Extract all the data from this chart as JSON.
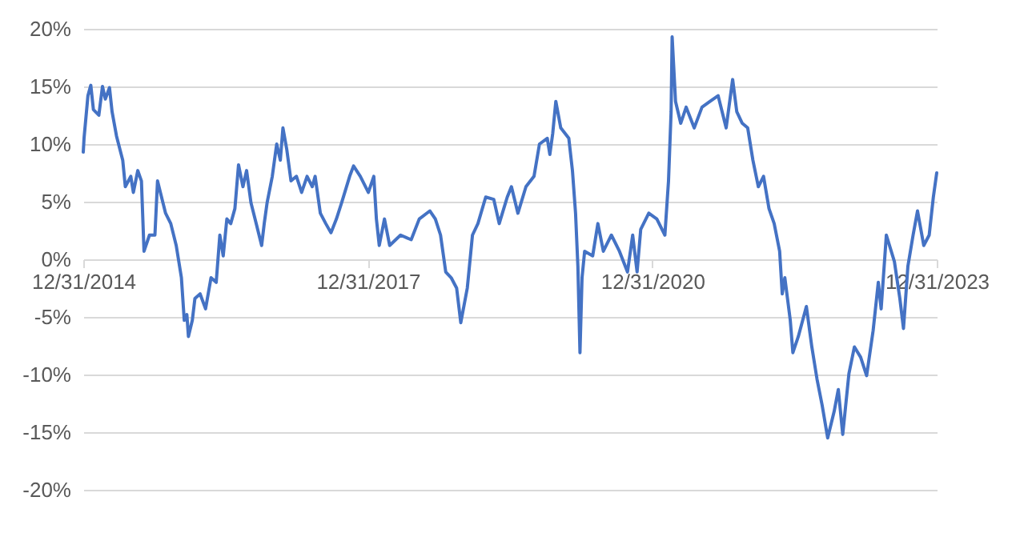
{
  "chart_data": {
    "type": "line",
    "x": [
      "2014-12-31",
      "2015-01-03",
      "2015-01-18",
      "2015-01-29",
      "2015-02-08",
      "2015-03-01",
      "2015-03-15",
      "2015-03-26",
      "2015-04-11",
      "2015-04-21",
      "2015-05-08",
      "2015-06-01",
      "2015-06-11",
      "2015-07-02",
      "2015-07-12",
      "2015-07-29",
      "2015-08-12",
      "2015-08-22",
      "2015-09-12",
      "2015-10-03",
      "2015-10-13",
      "2015-11-03",
      "2015-11-13",
      "2015-12-03",
      "2015-12-24",
      "2016-01-13",
      "2016-01-24",
      "2016-02-03",
      "2016-02-09",
      "2016-02-24",
      "2016-03-05",
      "2016-03-25",
      "2016-04-15",
      "2016-05-06",
      "2016-05-26",
      "2016-06-09",
      "2016-06-22",
      "2016-07-06",
      "2016-07-21",
      "2016-08-06",
      "2016-08-20",
      "2016-09-06",
      "2016-09-20",
      "2016-10-07",
      "2016-10-27",
      "2016-11-17",
      "2016-11-27",
      "2016-12-08",
      "2016-12-28",
      "2017-01-14",
      "2017-01-28",
      "2017-02-07",
      "2017-02-22",
      "2017-03-10",
      "2017-03-31",
      "2017-04-20",
      "2017-05-11",
      "2017-05-31",
      "2017-06-11",
      "2017-07-01",
      "2017-07-22",
      "2017-08-11",
      "2017-09-01",
      "2017-09-21",
      "2017-10-22",
      "2017-11-06",
      "2017-12-02",
      "2018-01-02",
      "2018-01-23",
      "2018-02-02",
      "2018-02-13",
      "2018-03-05",
      "2018-03-25",
      "2018-05-06",
      "2018-06-16",
      "2018-07-17",
      "2018-08-27",
      "2018-09-17",
      "2018-10-07",
      "2018-10-27",
      "2018-11-17",
      "2018-12-08",
      "2018-12-24",
      "2019-01-18",
      "2019-02-07",
      "2019-02-28",
      "2019-03-30",
      "2019-04-30",
      "2019-05-21",
      "2019-06-21",
      "2019-07-07",
      "2019-08-01",
      "2019-09-01",
      "2019-10-02",
      "2019-10-23",
      "2019-11-22",
      "2019-12-02",
      "2019-12-13",
      "2019-12-25",
      "2020-01-13",
      "2020-02-13",
      "2020-02-27",
      "2020-03-10",
      "2020-03-19",
      "2020-03-27",
      "2020-04-04",
      "2020-04-14",
      "2020-05-15",
      "2020-06-04",
      "2020-06-25",
      "2020-07-26",
      "2020-08-26",
      "2020-09-26",
      "2020-10-16",
      "2020-11-02",
      "2020-11-16",
      "2020-12-17",
      "2021-01-17",
      "2021-02-17",
      "2021-03-03",
      "2021-03-13",
      "2021-03-17",
      "2021-03-30",
      "2021-04-19",
      "2021-05-10",
      "2021-06-10",
      "2021-07-10",
      "2021-08-10",
      "2021-09-10",
      "2021-10-11",
      "2021-11-05",
      "2021-11-21",
      "2021-12-12",
      "2022-01-02",
      "2022-01-22",
      "2022-02-12",
      "2022-03-04",
      "2022-03-25",
      "2022-04-14",
      "2022-05-05",
      "2022-05-15",
      "2022-05-25",
      "2022-06-15",
      "2022-06-25",
      "2022-07-16",
      "2022-08-16",
      "2022-09-06",
      "2022-09-26",
      "2022-10-16",
      "2022-11-06",
      "2022-12-01",
      "2022-12-17",
      "2023-01-03",
      "2023-01-27",
      "2023-02-17",
      "2023-03-13",
      "2023-04-05",
      "2023-04-30",
      "2023-05-20",
      "2023-05-31",
      "2023-06-20",
      "2023-07-21",
      "2023-08-11",
      "2023-08-25",
      "2023-09-11",
      "2023-10-01",
      "2023-10-18",
      "2023-11-11",
      "2023-12-02",
      "2023-12-18",
      "2023-12-31"
    ],
    "series": [
      {
        "color": "#4472c4",
        "values": [
          9.3,
          10.5,
          14.2,
          15.1,
          13,
          12.5,
          15,
          13.9,
          14.9,
          12.8,
          10.7,
          8.6,
          6.3,
          7.2,
          5.8,
          7.7,
          6.8,
          0.7,
          2.1,
          2.1,
          6.8,
          4.9,
          4.0,
          3.1,
          1.2,
          -1.6,
          -5.3,
          -4.8,
          -6.7,
          -5.3,
          -3.4,
          -3.0,
          -4.3,
          -1.6,
          -2.0,
          2.1,
          0.3,
          3.5,
          3.1,
          4.4,
          8.2,
          6.3,
          7.7,
          4.9,
          3.1,
          1.2,
          3.1,
          4.9,
          7.2,
          10,
          8.6,
          11.4,
          9.5,
          6.8,
          7.2,
          5.8,
          7.2,
          6.3,
          7.2,
          4.0,
          3.1,
          2.3,
          3.5,
          4.9,
          7.2,
          8.1,
          7.2,
          5.8,
          7.2,
          3.5,
          1.2,
          3.5,
          1.2,
          2.1,
          1.7,
          3.5,
          4.2,
          3.5,
          2.1,
          -1.1,
          -1.6,
          -2.5,
          -5.5,
          -2.5,
          2.1,
          3.1,
          5.4,
          5.2,
          3.1,
          5.4,
          6.3,
          4.0,
          6.3,
          7.2,
          10,
          10.5,
          9.1,
          10.9,
          13.7,
          11.4,
          10.5,
          7.7,
          4.0,
          -0.6,
          -8.1,
          -1.6,
          0.7,
          0.3,
          3.1,
          0.7,
          2.1,
          0.7,
          -1.1,
          2.1,
          -1.1,
          2.6,
          4.0,
          3.5,
          2.1,
          6.8,
          12.8,
          19.3,
          13.7,
          11.8,
          13.2,
          11.4,
          13.2,
          13.7,
          14.2,
          11.4,
          15.6,
          12.8,
          11.8,
          11.4,
          8.6,
          6.3,
          7.2,
          4.4,
          3.1,
          0.7,
          -3.0,
          -1.6,
          -5.3,
          -8.1,
          -6.7,
          -4.1,
          -7.6,
          -10.4,
          -12.7,
          -15.5,
          -13.2,
          -11.3,
          -15.2,
          -9.9,
          -7.6,
          -8.5,
          -10.1,
          -6.2,
          -2.0,
          -4.3,
          2.1,
          -0.2,
          -3.4,
          -6.0,
          -0.6,
          2.1,
          4.2,
          1.2,
          2.1,
          5.4,
          7.5
        ]
      }
    ],
    "xlim": [
      "2014-12-31",
      "2023-12-31"
    ],
    "xticks": [
      {
        "value": "2014-12-31",
        "label": "12/31/2014"
      },
      {
        "value": "2017-12-31",
        "label": "12/31/2017"
      },
      {
        "value": "2020-12-31",
        "label": "12/31/2020"
      },
      {
        "value": "2023-12-31",
        "label": "12/31/2023"
      }
    ],
    "ylim": [
      -20,
      20
    ],
    "yticks": [
      {
        "value": -20,
        "label": "-20%"
      },
      {
        "value": -15,
        "label": "-15%"
      },
      {
        "value": -10,
        "label": "-10%"
      },
      {
        "value": -5,
        "label": "-5%"
      },
      {
        "value": 0,
        "label": "0%"
      },
      {
        "value": 5,
        "label": "5%"
      },
      {
        "value": 10,
        "label": "10%"
      },
      {
        "value": 15,
        "label": "15%"
      },
      {
        "value": 20,
        "label": "20%"
      }
    ],
    "grid": "y"
  }
}
